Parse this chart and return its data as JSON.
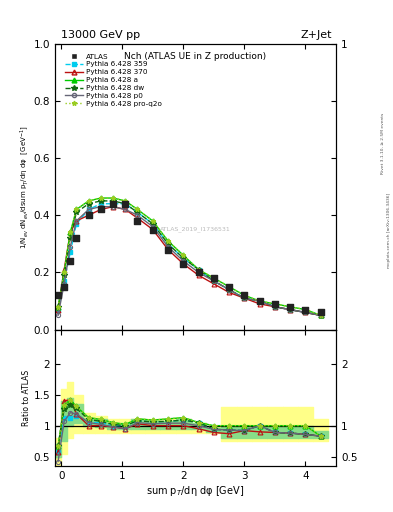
{
  "title_top": "13000 GeV pp",
  "title_right": "Z+Jet",
  "plot_title": "Nch (ATLAS UE in Z production)",
  "ylabel_main": "1/N$_{ev}$ dN$_{ev}$/dsum p$_T$/dη dφ  [GeV$^{-1}$]",
  "ylabel_ratio": "Ratio to ATLAS",
  "xlabel": "sum p$_T$/dη dφ [GeV]",
  "watermark": "ATLAS_2019_I1736531",
  "rivet_label": "Rivet 3.1.10, ≥ 2.5M events",
  "mcplots_label": "mcplots.cern.ch [arXiv:1306.3436]",
  "x_atlas": [
    -0.05,
    0.05,
    0.15,
    0.25,
    0.45,
    0.65,
    0.85,
    1.05,
    1.25,
    1.5,
    1.75,
    2.0,
    2.25,
    2.5,
    2.75,
    3.0,
    3.25,
    3.5,
    3.75,
    4.0,
    4.25
  ],
  "y_atlas": [
    0.12,
    0.15,
    0.24,
    0.32,
    0.4,
    0.42,
    0.44,
    0.44,
    0.38,
    0.35,
    0.28,
    0.23,
    0.2,
    0.18,
    0.15,
    0.12,
    0.1,
    0.09,
    0.08,
    0.07,
    0.06
  ],
  "x_mc": [
    -0.05,
    0.05,
    0.15,
    0.25,
    0.45,
    0.65,
    0.85,
    1.05,
    1.25,
    1.5,
    1.75,
    2.0,
    2.25,
    2.5,
    2.75,
    3.0,
    3.25,
    3.5,
    3.75,
    4.0,
    4.25
  ],
  "y_py359": [
    0.07,
    0.17,
    0.27,
    0.37,
    0.42,
    0.44,
    0.44,
    0.44,
    0.41,
    0.37,
    0.3,
    0.25,
    0.21,
    0.17,
    0.14,
    0.11,
    0.1,
    0.08,
    0.07,
    0.06,
    0.05
  ],
  "y_py370": [
    0.07,
    0.21,
    0.34,
    0.38,
    0.4,
    0.42,
    0.43,
    0.42,
    0.39,
    0.35,
    0.28,
    0.23,
    0.19,
    0.16,
    0.13,
    0.11,
    0.09,
    0.08,
    0.07,
    0.06,
    0.05
  ],
  "y_pya": [
    0.08,
    0.2,
    0.34,
    0.42,
    0.45,
    0.46,
    0.46,
    0.45,
    0.42,
    0.38,
    0.31,
    0.26,
    0.21,
    0.18,
    0.15,
    0.12,
    0.1,
    0.09,
    0.08,
    0.07,
    0.05
  ],
  "y_pydw": [
    0.08,
    0.19,
    0.32,
    0.41,
    0.44,
    0.45,
    0.45,
    0.44,
    0.41,
    0.37,
    0.3,
    0.25,
    0.21,
    0.17,
    0.14,
    0.11,
    0.1,
    0.08,
    0.07,
    0.06,
    0.05
  ],
  "y_pyp0": [
    0.05,
    0.16,
    0.29,
    0.38,
    0.42,
    0.43,
    0.43,
    0.42,
    0.4,
    0.36,
    0.29,
    0.24,
    0.2,
    0.17,
    0.14,
    0.11,
    0.1,
    0.08,
    0.07,
    0.06,
    0.05
  ],
  "y_pyproq2o": [
    0.08,
    0.2,
    0.34,
    0.42,
    0.45,
    0.46,
    0.46,
    0.45,
    0.42,
    0.38,
    0.31,
    0.26,
    0.21,
    0.18,
    0.15,
    0.12,
    0.1,
    0.09,
    0.08,
    0.07,
    0.05
  ],
  "ratio_py359": [
    0.58,
    1.13,
    1.13,
    1.16,
    1.05,
    1.05,
    1.0,
    1.0,
    1.08,
    1.06,
    1.07,
    1.09,
    1.05,
    0.94,
    0.93,
    0.92,
    1.0,
    0.89,
    0.88,
    0.86,
    0.83
  ],
  "ratio_py370": [
    0.58,
    1.4,
    1.42,
    1.19,
    1.0,
    1.0,
    0.98,
    0.95,
    1.03,
    1.0,
    1.0,
    1.0,
    0.95,
    0.89,
    0.87,
    0.92,
    0.9,
    0.89,
    0.88,
    0.86,
    0.83
  ],
  "ratio_pya": [
    0.67,
    1.33,
    1.42,
    1.31,
    1.13,
    1.1,
    1.05,
    1.02,
    1.11,
    1.09,
    1.11,
    1.13,
    1.05,
    1.0,
    1.0,
    1.0,
    1.0,
    1.0,
    1.0,
    1.0,
    0.83
  ],
  "ratio_pydw": [
    0.67,
    1.27,
    1.33,
    1.28,
    1.1,
    1.07,
    1.02,
    1.0,
    1.08,
    1.06,
    1.07,
    1.09,
    1.05,
    0.94,
    0.93,
    0.92,
    1.0,
    0.89,
    0.88,
    0.86,
    0.83
  ],
  "ratio_pyp0": [
    0.42,
    1.07,
    1.21,
    1.19,
    1.05,
    1.02,
    0.98,
    0.95,
    1.05,
    1.03,
    1.04,
    1.04,
    1.0,
    0.94,
    0.93,
    0.92,
    1.0,
    0.89,
    0.88,
    0.86,
    0.83
  ],
  "ratio_pyproq2o": [
    0.67,
    1.33,
    1.42,
    1.31,
    1.13,
    1.1,
    1.05,
    1.02,
    1.11,
    1.09,
    1.11,
    1.13,
    1.05,
    1.0,
    1.0,
    1.0,
    1.0,
    1.0,
    1.0,
    1.0,
    0.83
  ],
  "band_x_edges": [
    -0.1,
    0.0,
    0.1,
    0.2,
    0.35,
    0.55,
    0.75,
    0.95,
    1.15,
    1.375,
    1.625,
    1.875,
    2.125,
    2.375,
    2.625,
    2.875,
    3.125,
    3.375,
    3.625,
    3.875,
    4.125,
    4.375
  ],
  "band_yellow_lo": [
    0.35,
    0.55,
    0.8,
    0.88,
    0.88,
    0.88,
    0.88,
    0.88,
    0.88,
    0.88,
    0.88,
    0.88,
    0.88,
    0.88,
    0.75,
    0.75,
    0.75,
    0.75,
    0.75,
    0.75,
    0.75
  ],
  "band_yellow_hi": [
    0.8,
    1.6,
    1.7,
    1.5,
    1.2,
    1.15,
    1.1,
    1.1,
    1.1,
    1.1,
    1.1,
    1.1,
    1.05,
    1.0,
    1.3,
    1.3,
    1.3,
    1.3,
    1.3,
    1.3,
    1.1
  ],
  "band_green_lo": [
    0.5,
    0.75,
    1.0,
    1.05,
    1.0,
    0.98,
    0.95,
    0.95,
    0.95,
    0.95,
    0.95,
    0.95,
    0.95,
    0.9,
    0.8,
    0.8,
    0.8,
    0.8,
    0.8,
    0.8,
    0.8
  ],
  "band_green_hi": [
    0.7,
    1.4,
    1.45,
    1.35,
    1.12,
    1.1,
    1.05,
    1.05,
    1.1,
    1.08,
    1.08,
    1.1,
    1.05,
    0.97,
    1.0,
    1.0,
    1.0,
    1.0,
    1.0,
    1.0,
    0.92
  ],
  "color_atlas": "#222222",
  "color_py359": "#00CCEE",
  "color_py370": "#BB1111",
  "color_pya": "#00CC00",
  "color_pydw": "#116611",
  "color_pyp0": "#666677",
  "color_pyproq2o": "#99CC22",
  "xlim": [
    -0.1,
    4.5
  ],
  "ylim_main": [
    0.0,
    1.0
  ],
  "ylim_ratio": [
    0.35,
    2.55
  ],
  "yticks_main": [
    0.0,
    0.2,
    0.4,
    0.6,
    0.8,
    1.0
  ],
  "yticks_ratio": [
    0.5,
    1.0,
    1.5,
    2.0
  ],
  "legend_entries": [
    "ATLAS",
    "Pythia 6.428 359",
    "Pythia 6.428 370",
    "Pythia 6.428 a",
    "Pythia 6.428 dw",
    "Pythia 6.428 p0",
    "Pythia 6.428 pro-q2o"
  ]
}
